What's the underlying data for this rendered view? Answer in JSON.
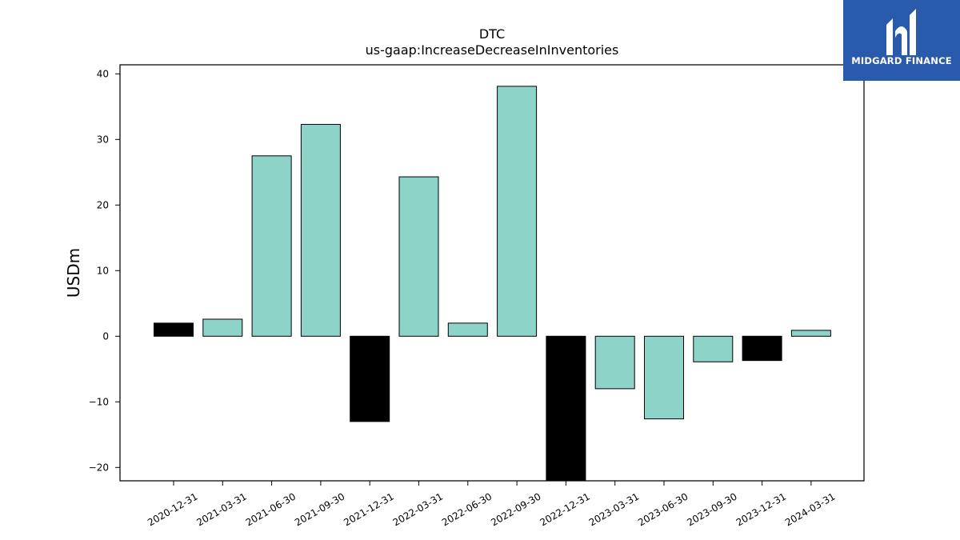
{
  "chart_data": {
    "type": "bar",
    "title": "DTC",
    "subtitle": "us-gaap:IncreaseDecreaseInInventories",
    "xlabel": "",
    "ylabel": "USDm",
    "ylim": [
      -22,
      41.5
    ],
    "yticks": [
      -20,
      -10,
      0,
      10,
      20,
      30,
      40
    ],
    "ytick_labels": [
      "−20",
      "−10",
      "0",
      "10",
      "20",
      "30",
      "40"
    ],
    "grid": false,
    "categories": [
      "2020-12-31",
      "2021-03-31",
      "2021-06-30",
      "2021-09-30",
      "2021-12-31",
      "2022-03-31",
      "2022-06-30",
      "2022-09-30",
      "2022-12-31",
      "2023-03-31",
      "2023-06-30",
      "2023-09-30",
      "2023-12-31",
      "2024-03-31"
    ],
    "values": [
      2.0,
      2.6,
      27.5,
      32.3,
      -13.0,
      24.3,
      2.0,
      38.1,
      -22.0,
      -8.0,
      -12.6,
      -3.9,
      -3.7,
      0.9
    ],
    "highlight": [
      true,
      false,
      false,
      false,
      true,
      false,
      false,
      false,
      true,
      false,
      false,
      false,
      true,
      false
    ],
    "colors": {
      "bar": "#8dd3c7",
      "highlight": "#000000",
      "edge": "#000000"
    }
  },
  "logo": {
    "text": "MIDGARD FINANCE",
    "background": "#2a5aac"
  }
}
